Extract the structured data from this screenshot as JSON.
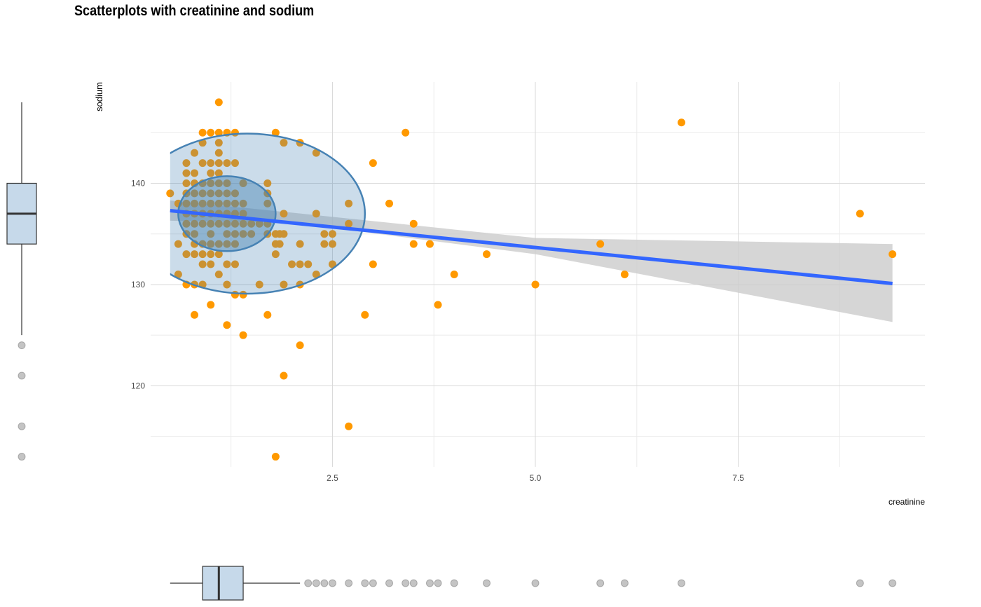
{
  "chart_data": {
    "type": "scatter",
    "title": "Scatterplots with creatinine and sodium",
    "xlabel": "creatinine",
    "ylabel": "sodium",
    "xlim": [
      0.26,
      9.8
    ],
    "ylim": [
      112,
      150
    ],
    "x_ticks": [
      2.5,
      5.0,
      7.5
    ],
    "x_tick_labels": [
      "2.5",
      "5.0",
      "7.5"
    ],
    "y_ticks": [
      120,
      130,
      140
    ],
    "y_tick_labels": [
      "120",
      "130",
      "140"
    ],
    "grid": true,
    "legend": "none",
    "colors": {
      "points": "#ff9900",
      "regression_line": "#3366ff",
      "confidence_band": "#cccccc",
      "ellipse_stroke": "#4682b4",
      "ellipse_fill": "#4682b4",
      "boxplot_fill": "#c6d9ea",
      "grid": "#d9d9d9"
    },
    "points": [
      [
        0.5,
        139
      ],
      [
        0.6,
        138
      ],
      [
        0.6,
        134
      ],
      [
        0.6,
        131
      ],
      [
        0.7,
        142
      ],
      [
        0.7,
        141
      ],
      [
        0.7,
        140
      ],
      [
        0.7,
        139
      ],
      [
        0.7,
        138
      ],
      [
        0.7,
        137
      ],
      [
        0.7,
        136
      ],
      [
        0.7,
        135
      ],
      [
        0.7,
        133
      ],
      [
        0.7,
        130
      ],
      [
        0.8,
        143
      ],
      [
        0.8,
        141
      ],
      [
        0.8,
        140
      ],
      [
        0.8,
        139
      ],
      [
        0.8,
        138
      ],
      [
        0.8,
        137
      ],
      [
        0.8,
        136
      ],
      [
        0.8,
        135
      ],
      [
        0.8,
        134
      ],
      [
        0.8,
        133
      ],
      [
        0.8,
        130
      ],
      [
        0.8,
        127
      ],
      [
        0.9,
        145
      ],
      [
        0.9,
        144
      ],
      [
        0.9,
        142
      ],
      [
        0.9,
        140
      ],
      [
        0.9,
        139
      ],
      [
        0.9,
        138
      ],
      [
        0.9,
        137
      ],
      [
        0.9,
        136
      ],
      [
        0.9,
        134
      ],
      [
        0.9,
        133
      ],
      [
        0.9,
        132
      ],
      [
        0.9,
        130
      ],
      [
        1.0,
        145
      ],
      [
        1.0,
        142
      ],
      [
        1.0,
        141
      ],
      [
        1.0,
        140
      ],
      [
        1.0,
        139
      ],
      [
        1.0,
        138
      ],
      [
        1.0,
        137
      ],
      [
        1.0,
        136
      ],
      [
        1.0,
        135
      ],
      [
        1.0,
        134
      ],
      [
        1.0,
        133
      ],
      [
        1.0,
        132
      ],
      [
        1.0,
        128
      ],
      [
        1.1,
        148
      ],
      [
        1.1,
        145
      ],
      [
        1.1,
        144
      ],
      [
        1.1,
        143
      ],
      [
        1.1,
        142
      ],
      [
        1.1,
        141
      ],
      [
        1.1,
        140
      ],
      [
        1.1,
        139
      ],
      [
        1.1,
        138
      ],
      [
        1.1,
        137
      ],
      [
        1.1,
        136
      ],
      [
        1.1,
        134
      ],
      [
        1.1,
        133
      ],
      [
        1.1,
        131
      ],
      [
        1.2,
        145
      ],
      [
        1.2,
        142
      ],
      [
        1.2,
        140
      ],
      [
        1.2,
        139
      ],
      [
        1.2,
        138
      ],
      [
        1.2,
        137
      ],
      [
        1.2,
        136
      ],
      [
        1.2,
        135
      ],
      [
        1.2,
        134
      ],
      [
        1.2,
        132
      ],
      [
        1.2,
        130
      ],
      [
        1.2,
        126
      ],
      [
        1.3,
        145
      ],
      [
        1.3,
        142
      ],
      [
        1.3,
        139
      ],
      [
        1.3,
        138
      ],
      [
        1.3,
        137
      ],
      [
        1.3,
        136
      ],
      [
        1.3,
        135
      ],
      [
        1.3,
        134
      ],
      [
        1.3,
        132
      ],
      [
        1.3,
        129
      ],
      [
        1.4,
        140
      ],
      [
        1.4,
        138
      ],
      [
        1.4,
        137
      ],
      [
        1.4,
        136
      ],
      [
        1.4,
        135
      ],
      [
        1.4,
        129
      ],
      [
        1.4,
        125
      ],
      [
        1.5,
        136
      ],
      [
        1.5,
        135
      ],
      [
        1.6,
        136
      ],
      [
        1.6,
        130
      ],
      [
        1.7,
        140
      ],
      [
        1.7,
        139
      ],
      [
        1.7,
        138
      ],
      [
        1.7,
        136
      ],
      [
        1.7,
        135
      ],
      [
        1.7,
        127
      ],
      [
        1.8,
        145
      ],
      [
        1.8,
        135
      ],
      [
        1.8,
        134
      ],
      [
        1.8,
        133
      ],
      [
        1.8,
        113
      ],
      [
        1.85,
        134
      ],
      [
        1.85,
        135
      ],
      [
        1.9,
        144
      ],
      [
        1.9,
        137
      ],
      [
        1.9,
        135
      ],
      [
        1.9,
        130
      ],
      [
        1.9,
        121
      ],
      [
        2.0,
        132
      ],
      [
        2.1,
        144
      ],
      [
        2.1,
        134
      ],
      [
        2.1,
        132
      ],
      [
        2.1,
        130
      ],
      [
        2.1,
        124
      ],
      [
        2.2,
        132
      ],
      [
        2.3,
        143
      ],
      [
        2.3,
        137
      ],
      [
        2.3,
        131
      ],
      [
        2.4,
        135
      ],
      [
        2.4,
        134
      ],
      [
        2.5,
        135
      ],
      [
        2.5,
        134
      ],
      [
        2.5,
        132
      ],
      [
        2.7,
        138
      ],
      [
        2.7,
        136
      ],
      [
        2.7,
        116
      ],
      [
        2.9,
        127
      ],
      [
        3.0,
        142
      ],
      [
        3.0,
        132
      ],
      [
        3.2,
        138
      ],
      [
        3.4,
        145
      ],
      [
        3.5,
        136
      ],
      [
        3.5,
        134
      ],
      [
        3.7,
        134
      ],
      [
        3.8,
        128
      ],
      [
        4.0,
        131
      ],
      [
        4.4,
        133
      ],
      [
        5.0,
        130
      ],
      [
        5.8,
        134
      ],
      [
        6.1,
        131
      ],
      [
        6.8,
        146
      ],
      [
        9.0,
        137
      ],
      [
        9.4,
        133
      ]
    ],
    "regression": {
      "x": [
        0.5,
        9.4
      ],
      "y": [
        137.3,
        130.1
      ]
    },
    "confidence_band": {
      "x": [
        0.5,
        2.0,
        5.0,
        9.4
      ],
      "lower": [
        136.3,
        136.1,
        133.0,
        126.3
      ],
      "upper": [
        138.3,
        137.1,
        134.6,
        134.0
      ]
    },
    "ellipses": [
      {
        "level": 0.95,
        "cx": 1.45,
        "cy": 137,
        "rx": 1.45,
        "ry": 7.9
      },
      {
        "level": 0.5,
        "cx": 1.2,
        "cy": 137,
        "rx": 0.6,
        "ry": 3.7
      }
    ],
    "marginal_boxplot_x": {
      "min": 0.5,
      "q1": 0.9,
      "median": 1.1,
      "q3": 1.4,
      "max": 2.1,
      "outliers": [
        2.2,
        2.3,
        2.4,
        2.5,
        2.7,
        2.9,
        3.0,
        3.2,
        3.4,
        3.5,
        3.7,
        3.8,
        4.0,
        4.4,
        5.0,
        5.8,
        6.1,
        6.8,
        9.0,
        9.4
      ]
    },
    "marginal_boxplot_y": {
      "min": 125,
      "q1": 134,
      "median": 137,
      "q3": 140,
      "max": 148,
      "outliers": [
        124,
        121,
        116,
        113
      ]
    }
  }
}
